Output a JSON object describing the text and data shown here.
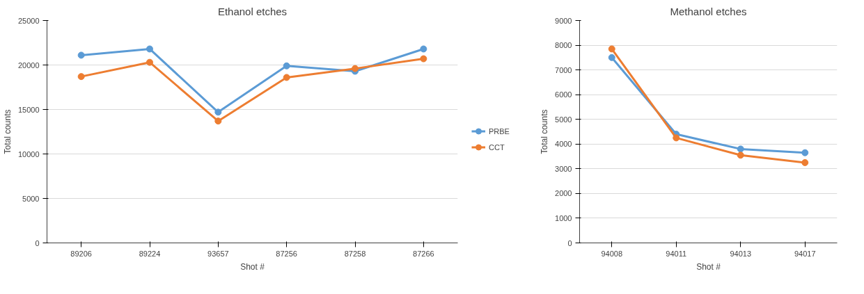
{
  "chart_data": [
    {
      "type": "line",
      "title": "Ethanol etches",
      "xlabel": "Shot #",
      "ylabel": "Total counts",
      "categories": [
        "89206",
        "89224",
        "93657",
        "87256",
        "87258",
        "87266"
      ],
      "series": [
        {
          "name": "PRBE",
          "color": "#5b9bd5",
          "values": [
            21100,
            21800,
            14700,
            19900,
            19300,
            21800
          ]
        },
        {
          "name": "CCT",
          "color": "#ed7d31",
          "values": [
            18700,
            20300,
            13700,
            18600,
            19600,
            20700
          ]
        }
      ],
      "ylim": [
        0,
        25000
      ],
      "yticks": [
        0,
        5000,
        10000,
        15000,
        20000,
        25000
      ],
      "grid": "y",
      "legend": "right",
      "marker": "circle"
    },
    {
      "type": "line",
      "title": "Methanol etches",
      "xlabel": "Shot #",
      "ylabel": "Total counts",
      "categories": [
        "94008",
        "94011",
        "94013",
        "94017"
      ],
      "series": [
        {
          "color": "#5b9bd5",
          "values": [
            7500,
            4400,
            3800,
            3650
          ]
        },
        {
          "color": "#ed7d31",
          "values": [
            7850,
            4250,
            3550,
            3250
          ]
        }
      ],
      "ylim": [
        0,
        9000
      ],
      "yticks": [
        0,
        1000,
        2000,
        3000,
        4000,
        5000,
        6000,
        7000,
        8000,
        9000
      ],
      "grid": "y",
      "legend": false,
      "marker": "circle"
    }
  ]
}
